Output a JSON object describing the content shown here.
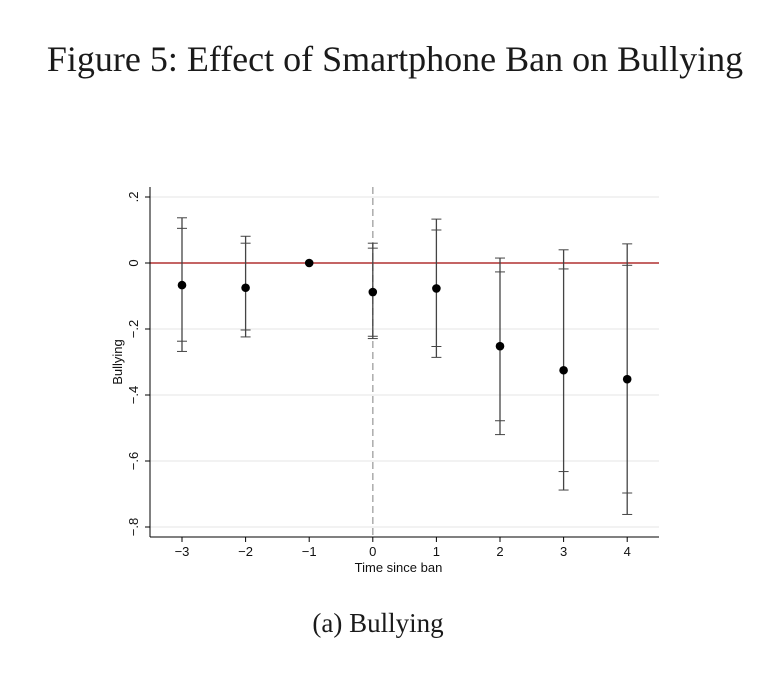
{
  "figure": {
    "title": "Figure 5: Effect of Smartphone Ban on Bullying",
    "subcaption": "(a) Bullying"
  },
  "chart_data": {
    "type": "scatter",
    "subtype": "coefficient plot with confidence intervals",
    "xlabel": "Time since ban",
    "ylabel": "Bullying",
    "x_ticks": [
      -3,
      -2,
      -1,
      0,
      1,
      2,
      3,
      4
    ],
    "x_tick_labels": [
      "−3",
      "−2",
      "−1",
      "0",
      "1",
      "2",
      "3",
      "4"
    ],
    "y_ticks": [
      0.2,
      0,
      -0.2,
      -0.4,
      -0.6,
      -0.8
    ],
    "y_tick_labels": [
      ".2",
      "0",
      "−.2",
      "−.4",
      "−.6",
      "−.8"
    ],
    "xlim": [
      -3.5,
      4.5
    ],
    "ylim": [
      -0.82,
      0.23
    ],
    "grid": true,
    "reference_lines": {
      "horizontal_y": 0,
      "horizontal_color": "#b03030",
      "vertical_x": 0,
      "vertical_color": "#b0b0b0",
      "vertical_style": "dashed"
    },
    "points": [
      {
        "x": -3,
        "y": -0.067,
        "ci90": [
          -0.237,
          0.105
        ],
        "ci95": [
          -0.268,
          0.137
        ]
      },
      {
        "x": -2,
        "y": -0.075,
        "ci90": [
          -0.203,
          0.06
        ],
        "ci95": [
          -0.224,
          0.081
        ]
      },
      {
        "x": -1,
        "y": 0.0,
        "ci90": null,
        "ci95": null
      },
      {
        "x": 0,
        "y": -0.088,
        "ci90": [
          -0.222,
          0.045
        ],
        "ci95": [
          -0.229,
          0.06
        ]
      },
      {
        "x": 1,
        "y": -0.077,
        "ci90": [
          -0.253,
          0.1
        ],
        "ci95": [
          -0.286,
          0.133
        ]
      },
      {
        "x": 2,
        "y": -0.252,
        "ci90": [
          -0.478,
          -0.027
        ],
        "ci95": [
          -0.52,
          0.015
        ]
      },
      {
        "x": 3,
        "y": -0.325,
        "ci90": [
          -0.632,
          -0.018
        ],
        "ci95": [
          -0.688,
          0.04
        ]
      },
      {
        "x": 4,
        "y": -0.352,
        "ci90": [
          -0.697,
          -0.007
        ],
        "ci95": [
          -0.762,
          0.058
        ]
      }
    ],
    "colors": {
      "point": "#000000",
      "ci": "#444444",
      "grid": "#e4e4e4",
      "axis": "#000000"
    }
  }
}
